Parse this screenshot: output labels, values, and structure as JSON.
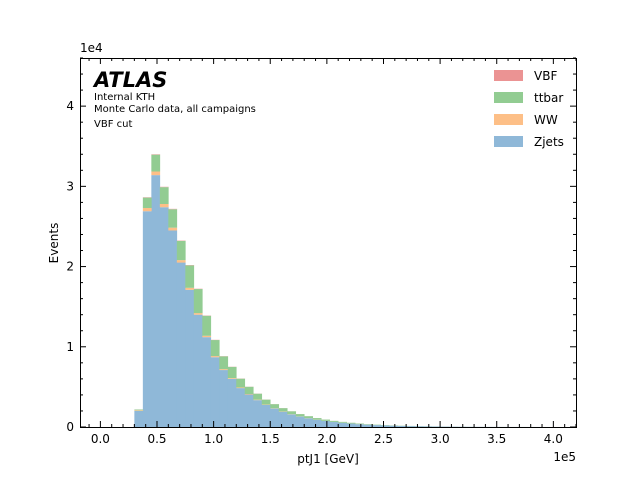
{
  "chart_data": {
    "type": "bar",
    "stacked": true,
    "histogram": true,
    "bin_width": 7500,
    "bin_start": 0,
    "xlabel": "ptJ1 [GeV]",
    "ylabel": "Events",
    "x_scale_label": "1e5",
    "y_scale_label": "1e4",
    "xlim": [
      -18000,
      420000
    ],
    "ylim": [
      0,
      46000
    ],
    "x_ticks": [
      0,
      50000,
      100000,
      150000,
      200000,
      250000,
      300000,
      350000,
      400000
    ],
    "x_tick_labels": [
      "0.0",
      "0.5",
      "1.0",
      "1.5",
      "2.0",
      "2.5",
      "3.0",
      "3.5",
      "4.0"
    ],
    "y_ticks": [
      0,
      10000,
      20000,
      30000,
      40000
    ],
    "y_tick_labels": [
      "0",
      "1",
      "2",
      "3",
      "4"
    ],
    "grid": false,
    "legend_position": "top-right",
    "annotation": {
      "brand": "ATLAS",
      "lines": [
        "Internal KTH",
        "Monte Carlo data, all campaigns",
        "VBF cut"
      ]
    },
    "series": [
      {
        "name": "Zjets",
        "color": "#8fb8d8",
        "values": [
          0,
          0,
          0,
          0,
          2000,
          26900,
          31400,
          27400,
          24500,
          20500,
          17100,
          14000,
          11200,
          8700,
          7100,
          6000,
          4850,
          4050,
          3350,
          2750,
          2300,
          1900,
          1580,
          1300,
          1090,
          900,
          750,
          620,
          520,
          430,
          350,
          290,
          240,
          200,
          165,
          135,
          110,
          90,
          75,
          60,
          50,
          40,
          30,
          25,
          20,
          15,
          12,
          10,
          8,
          6,
          5,
          4,
          3
        ]
      },
      {
        "name": "WW",
        "color": "#fdbf87",
        "values": [
          0,
          0,
          0,
          0,
          80,
          400,
          450,
          400,
          350,
          300,
          250,
          200,
          170,
          140,
          110,
          95,
          80,
          65,
          55,
          45,
          38,
          31,
          26,
          22,
          18,
          15,
          12,
          10,
          8,
          7,
          6,
          5,
          4,
          3,
          3,
          2,
          2,
          2,
          1,
          1,
          1,
          1,
          1,
          1,
          0,
          0,
          0,
          0,
          0,
          0,
          0,
          0,
          0
        ]
      },
      {
        "name": "ttbar",
        "color": "#92cc92",
        "values": [
          0,
          0,
          0,
          0,
          100,
          1300,
          2100,
          2100,
          2300,
          2400,
          2800,
          3000,
          2500,
          2000,
          1600,
          1400,
          1100,
          900,
          750,
          620,
          510,
          420,
          350,
          290,
          240,
          200,
          165,
          135,
          110,
          90,
          75,
          60,
          50,
          40,
          33,
          27,
          22,
          18,
          15,
          12,
          10,
          8,
          6,
          5,
          4,
          3,
          2,
          2,
          1,
          1,
          1,
          1,
          0
        ]
      },
      {
        "name": "VBF",
        "color": "#eb9393",
        "values": [
          0,
          0,
          0,
          0,
          5,
          40,
          50,
          45,
          45,
          42,
          40,
          36,
          32,
          28,
          24,
          20,
          17,
          14,
          12,
          10,
          8,
          7,
          6,
          5,
          4,
          3,
          3,
          2,
          2,
          2,
          1,
          1,
          1,
          1,
          1,
          1,
          0,
          0,
          0,
          0,
          0,
          0,
          0,
          0,
          0,
          0,
          0,
          0,
          0,
          0,
          0,
          0,
          0
        ]
      }
    ]
  }
}
